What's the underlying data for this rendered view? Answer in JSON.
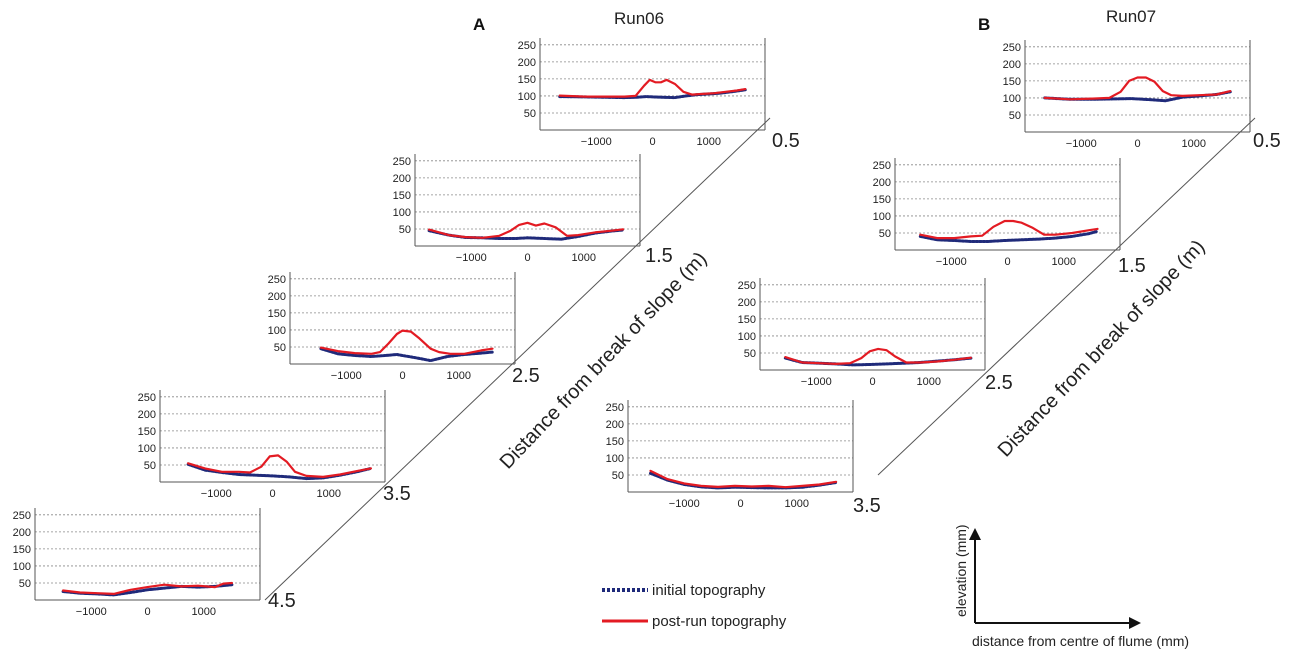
{
  "panels": [
    {
      "letter": "A",
      "run": "Run06",
      "axis_title": "Distance from break of slope (m)"
    },
    {
      "letter": "B",
      "run": "Run07",
      "axis_title": "Distance from break of slope (m)"
    }
  ],
  "legend": {
    "initial": "initial topography",
    "post": "post-run  topography"
  },
  "axis_guide": {
    "y": "elevation (mm)",
    "x": "distance from centre of flume (mm)"
  },
  "colors": {
    "initial": "#1f2a7a",
    "post": "#e31b23",
    "grid": "#888888",
    "frame": "#555555"
  },
  "chart_data": [
    {
      "type": "line",
      "panel": "A",
      "distance": "0.5",
      "xlim": [
        -2000,
        2000
      ],
      "ylim": [
        0,
        270
      ],
      "y_ticks": [
        50,
        100,
        150,
        200,
        250
      ],
      "x_ticks": [
        -1000,
        0,
        1000
      ],
      "series": [
        {
          "name": "initial topography",
          "x": [
            -1650,
            -1200,
            -800,
            -500,
            -300,
            -100,
            0,
            200,
            400,
            600,
            800,
            1000,
            1200,
            1400,
            1650
          ],
          "y": [
            98,
            97,
            96,
            95,
            96,
            98,
            97,
            96,
            95,
            100,
            104,
            106,
            108,
            112,
            118
          ]
        },
        {
          "name": "post-run  topography",
          "x": [
            -1650,
            -1200,
            -800,
            -500,
            -300,
            -150,
            -50,
            50,
            150,
            250,
            400,
            550,
            700,
            900,
            1100,
            1300,
            1500,
            1650
          ],
          "y": [
            101,
            98,
            98,
            98,
            100,
            130,
            147,
            140,
            140,
            147,
            135,
            112,
            104,
            106,
            108,
            112,
            116,
            120
          ]
        }
      ]
    },
    {
      "type": "line",
      "panel": "A",
      "distance": "1.5",
      "xlim": [
        -2000,
        2000
      ],
      "ylim": [
        0,
        270
      ],
      "y_ticks": [
        50,
        100,
        150,
        200,
        250
      ],
      "x_ticks": [
        -1000,
        0,
        1000
      ],
      "series": [
        {
          "name": "initial topography",
          "x": [
            -1750,
            -1400,
            -1100,
            -800,
            -500,
            -200,
            0,
            300,
            600,
            900,
            1200,
            1500,
            1700
          ],
          "y": [
            45,
            32,
            25,
            24,
            22,
            22,
            24,
            22,
            20,
            28,
            38,
            44,
            47
          ]
        },
        {
          "name": "post-run  topography",
          "x": [
            -1750,
            -1400,
            -1100,
            -800,
            -500,
            -300,
            -150,
            0,
            150,
            300,
            500,
            700,
            900,
            1200,
            1500,
            1700
          ],
          "y": [
            48,
            32,
            26,
            24,
            30,
            45,
            62,
            68,
            60,
            66,
            55,
            30,
            32,
            40,
            45,
            49
          ]
        }
      ]
    },
    {
      "type": "line",
      "panel": "A",
      "distance": "2.5",
      "xlim": [
        -2000,
        2000
      ],
      "ylim": [
        0,
        270
      ],
      "y_ticks": [
        50,
        100,
        150,
        200,
        250
      ],
      "x_ticks": [
        -1000,
        0,
        1000
      ],
      "series": [
        {
          "name": "initial topography",
          "x": [
            -1450,
            -1150,
            -850,
            -550,
            -300,
            -100,
            0,
            250,
            500,
            800,
            1100,
            1400,
            1600
          ],
          "y": [
            45,
            30,
            25,
            22,
            25,
            28,
            25,
            18,
            10,
            22,
            28,
            32,
            35
          ]
        },
        {
          "name": "post-run  topography",
          "x": [
            -1450,
            -1150,
            -850,
            -550,
            -400,
            -250,
            -100,
            0,
            150,
            300,
            500,
            650,
            850,
            1100,
            1400,
            1600
          ],
          "y": [
            48,
            38,
            32,
            30,
            35,
            60,
            88,
            98,
            95,
            75,
            45,
            35,
            30,
            30,
            40,
            45
          ]
        }
      ]
    },
    {
      "type": "line",
      "panel": "A",
      "distance": "3.5",
      "xlim": [
        -2000,
        2000
      ],
      "ylim": [
        0,
        270
      ],
      "y_ticks": [
        50,
        100,
        150,
        200,
        250
      ],
      "x_ticks": [
        -1000,
        0,
        1000
      ],
      "series": [
        {
          "name": "initial topography",
          "x": [
            -1500,
            -1200,
            -900,
            -600,
            -300,
            0,
            300,
            600,
            900,
            1200,
            1500,
            1750
          ],
          "y": [
            52,
            35,
            28,
            22,
            20,
            18,
            15,
            10,
            12,
            20,
            30,
            40
          ]
        },
        {
          "name": "post-run  topography",
          "x": [
            -1500,
            -1200,
            -900,
            -600,
            -400,
            -200,
            -50,
            100,
            250,
            400,
            600,
            900,
            1200,
            1500,
            1750
          ],
          "y": [
            55,
            40,
            30,
            30,
            28,
            45,
            75,
            78,
            60,
            30,
            18,
            15,
            22,
            32,
            40
          ]
        }
      ]
    },
    {
      "type": "line",
      "panel": "A",
      "distance": "4.5",
      "xlim": [
        -2000,
        2000
      ],
      "ylim": [
        0,
        270
      ],
      "y_ticks": [
        50,
        100,
        150,
        200,
        250
      ],
      "x_ticks": [
        -1000,
        0,
        1000
      ],
      "series": [
        {
          "name": "initial topography",
          "x": [
            -1500,
            -1200,
            -900,
            -600,
            -300,
            0,
            300,
            600,
            900,
            1200,
            1500
          ],
          "y": [
            25,
            20,
            18,
            15,
            22,
            30,
            35,
            40,
            38,
            40,
            45
          ]
        },
        {
          "name": "post-run  topography",
          "x": [
            -1500,
            -1200,
            -900,
            -600,
            -300,
            0,
            300,
            600,
            900,
            1200,
            1350,
            1500
          ],
          "y": [
            28,
            22,
            20,
            18,
            30,
            38,
            45,
            40,
            42,
            38,
            48,
            50
          ]
        }
      ]
    },
    {
      "type": "line",
      "panel": "B",
      "distance": "0.5",
      "xlim": [
        -2000,
        2000
      ],
      "ylim": [
        0,
        270
      ],
      "y_ticks": [
        50,
        100,
        150,
        200,
        250
      ],
      "x_ticks": [
        -1000,
        0,
        1000
      ],
      "series": [
        {
          "name": "initial topography",
          "x": [
            -1650,
            -1200,
            -800,
            -400,
            -100,
            200,
            500,
            800,
            1100,
            1400,
            1650
          ],
          "y": [
            100,
            96,
            96,
            97,
            98,
            95,
            92,
            102,
            106,
            110,
            118
          ]
        },
        {
          "name": "post-run  topography",
          "x": [
            -1650,
            -1200,
            -800,
            -500,
            -300,
            -150,
            0,
            150,
            300,
            450,
            600,
            800,
            1100,
            1400,
            1650
          ],
          "y": [
            100,
            96,
            98,
            100,
            118,
            150,
            160,
            160,
            148,
            120,
            108,
            106,
            108,
            110,
            120
          ]
        }
      ]
    },
    {
      "type": "line",
      "panel": "B",
      "distance": "1.5",
      "xlim": [
        -2000,
        2000
      ],
      "ylim": [
        0,
        270
      ],
      "y_ticks": [
        50,
        100,
        150,
        200,
        250
      ],
      "x_ticks": [
        -1000,
        0,
        1000
      ],
      "series": [
        {
          "name": "initial topography",
          "x": [
            -1550,
            -1250,
            -950,
            -650,
            -350,
            -50,
            250,
            550,
            850,
            1150,
            1450,
            1600
          ],
          "y": [
            40,
            30,
            28,
            25,
            25,
            28,
            30,
            32,
            35,
            40,
            48,
            55
          ]
        },
        {
          "name": "post-run  topography",
          "x": [
            -1550,
            -1250,
            -950,
            -650,
            -450,
            -250,
            -50,
            100,
            250,
            450,
            650,
            850,
            1150,
            1450,
            1600
          ],
          "y": [
            45,
            35,
            35,
            40,
            42,
            68,
            85,
            85,
            80,
            65,
            45,
            45,
            50,
            58,
            62
          ]
        }
      ]
    },
    {
      "type": "line",
      "panel": "B",
      "distance": "2.5",
      "xlim": [
        -2000,
        2000
      ],
      "ylim": [
        0,
        270
      ],
      "y_ticks": [
        50,
        100,
        150,
        200,
        250
      ],
      "x_ticks": [
        -1000,
        0,
        1000
      ],
      "series": [
        {
          "name": "initial topography",
          "x": [
            -1550,
            -1250,
            -950,
            -650,
            -350,
            -50,
            250,
            550,
            850,
            1150,
            1450,
            1750
          ],
          "y": [
            35,
            22,
            20,
            18,
            15,
            16,
            18,
            20,
            22,
            26,
            30,
            35
          ]
        },
        {
          "name": "post-run  topography",
          "x": [
            -1550,
            -1250,
            -950,
            -650,
            -400,
            -200,
            -50,
            100,
            250,
            400,
            600,
            850,
            1150,
            1450,
            1750
          ],
          "y": [
            38,
            22,
            20,
            18,
            20,
            35,
            55,
            62,
            58,
            40,
            22,
            22,
            25,
            30,
            36
          ]
        }
      ]
    },
    {
      "type": "line",
      "panel": "B",
      "distance": "3.5",
      "xlim": [
        -2000,
        2000
      ],
      "ylim": [
        0,
        270
      ],
      "y_ticks": [
        50,
        100,
        150,
        200,
        250
      ],
      "x_ticks": [
        -1000,
        0,
        1000
      ],
      "series": [
        {
          "name": "initial topography",
          "x": [
            -1600,
            -1300,
            -1000,
            -700,
            -400,
            -100,
            200,
            500,
            800,
            1100,
            1400,
            1700
          ],
          "y": [
            55,
            35,
            22,
            15,
            12,
            14,
            13,
            12,
            12,
            14,
            20,
            28
          ]
        },
        {
          "name": "post-run  topography",
          "x": [
            -1600,
            -1300,
            -1000,
            -700,
            -400,
            -100,
            200,
            500,
            800,
            1100,
            1400,
            1700
          ],
          "y": [
            62,
            38,
            25,
            18,
            15,
            18,
            16,
            18,
            14,
            18,
            22,
            30
          ]
        }
      ]
    }
  ]
}
